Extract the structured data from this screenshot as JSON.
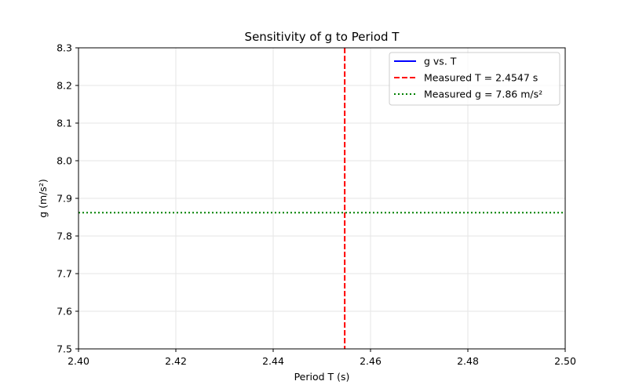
{
  "chart_data": {
    "type": "line",
    "title": "Sensitivity of g to Period T",
    "xlabel": "Period T (s)",
    "ylabel": "g (m/s²)",
    "xlim": [
      2.4,
      2.5
    ],
    "ylim": [
      7.5,
      8.3
    ],
    "xticks": [
      2.4,
      2.42,
      2.44,
      2.46,
      2.48,
      2.5
    ],
    "xtick_labels": [
      "2.40",
      "2.42",
      "2.44",
      "2.46",
      "2.48",
      "2.50"
    ],
    "yticks": [
      7.5,
      7.6,
      7.7,
      7.8,
      7.9,
      8.0,
      8.1,
      8.2,
      8.3
    ],
    "ytick_labels": [
      "7.5",
      "7.6",
      "7.7",
      "7.8",
      "7.9",
      "8.0",
      "8.1",
      "8.2",
      "8.3"
    ],
    "grid": true,
    "legend_position": "upper right",
    "series": [
      {
        "name": "g vs. T",
        "style": "solid",
        "color": "#0000ff",
        "x": [],
        "y": []
      }
    ],
    "reference_lines": [
      {
        "name": "Measured T = 2.4547 s",
        "orientation": "vertical",
        "value": 2.4547,
        "style": "dashed",
        "color": "#ff0000"
      },
      {
        "name": "Measured g = 7.86 m/s²",
        "orientation": "horizontal",
        "value": 7.862,
        "style": "dotted",
        "color": "#008000"
      }
    ]
  }
}
